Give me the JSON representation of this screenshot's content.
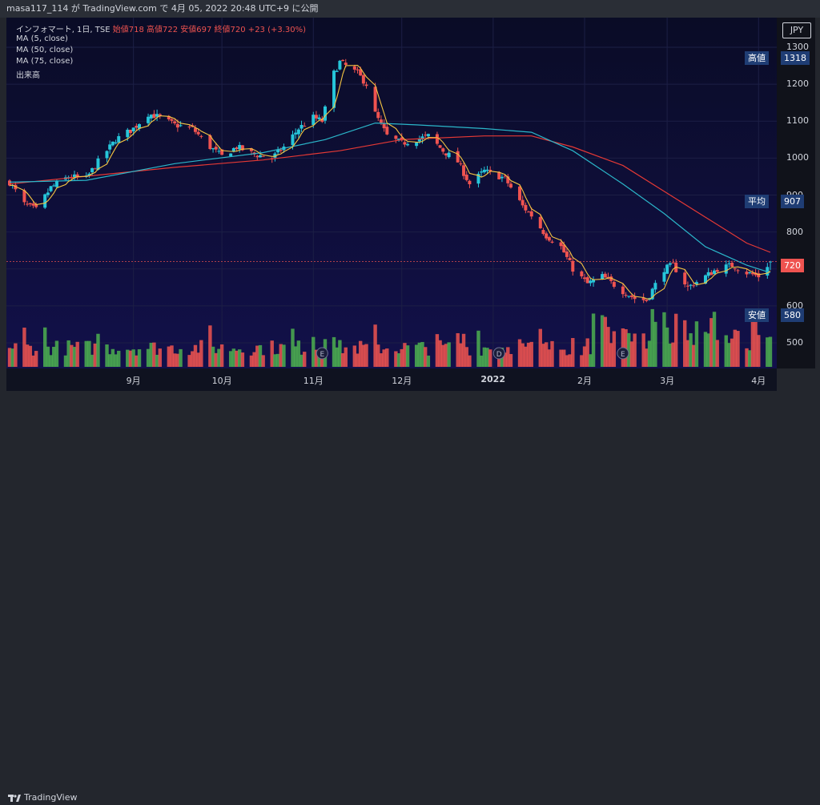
{
  "header": {
    "publish_line": "masa117_114 が TradingView.com で 4月 05, 2022 20:48 UTC+9 に公開"
  },
  "legend": {
    "symbol_line": "インフォマート, 1日, TSE",
    "ohlc": "始値718  高値722  安値697  終値720  +23 (+3.30%)",
    "ma5": "MA (5, close)",
    "ma50": "MA (50, close)",
    "ma75": "MA (75, close)",
    "volume": "出来高"
  },
  "currency": "JPY",
  "price_tags": {
    "high_label": "高値",
    "high_value": "1318",
    "avg_label": "平均",
    "avg_value": "907",
    "low_label": "安値",
    "low_value": "580",
    "last_value": "720"
  },
  "footer": {
    "brand": "TradingView"
  },
  "colors": {
    "up": "#26c6da",
    "down": "#ef5350",
    "ma5": "#f5c542",
    "ma50": "#2bb6c9",
    "ma75": "#e53935",
    "vol_up": "#4caf50",
    "vol_down": "#ef5350"
  },
  "chart_data": {
    "type": "candlestick",
    "y_ticks": [
      500,
      600,
      700,
      800,
      900,
      1000,
      1100,
      1200,
      1300
    ],
    "ylim": [
      450,
      1340
    ],
    "x_ticks": [
      "9月",
      "10月",
      "11月",
      "12月",
      "2022",
      "2月",
      "3月",
      "4月"
    ],
    "x_tick_dates": [
      "2021-09-01",
      "2021-10-01",
      "2021-11-01",
      "2021-12-01",
      "2022-01-01",
      "2022-02-01",
      "2022-03-01",
      "2022-04-01"
    ],
    "close_path": [
      [
        "2021-07-21",
        935
      ],
      [
        "2021-07-26",
        875
      ],
      [
        "2021-07-30",
        860
      ],
      [
        "2021-08-04",
        920
      ],
      [
        "2021-08-10",
        950
      ],
      [
        "2021-08-16",
        945
      ],
      [
        "2021-08-20",
        990
      ],
      [
        "2021-08-26",
        1050
      ],
      [
        "2021-09-01",
        1080
      ],
      [
        "2021-09-06",
        1120
      ],
      [
        "2021-09-10",
        1110
      ],
      [
        "2021-09-15",
        1090
      ],
      [
        "2021-09-21",
        1080
      ],
      [
        "2021-09-27",
        1030
      ],
      [
        "2021-10-01",
        1005
      ],
      [
        "2021-10-06",
        1030
      ],
      [
        "2021-10-12",
        1010
      ],
      [
        "2021-10-18",
        1000
      ],
      [
        "2021-10-22",
        1030
      ],
      [
        "2021-10-27",
        1080
      ],
      [
        "2021-11-01",
        1110
      ],
      [
        "2021-11-04",
        1100
      ],
      [
        "2021-11-08",
        1230
      ],
      [
        "2021-11-10",
        1260
      ],
      [
        "2021-11-12",
        1250
      ],
      [
        "2021-11-16",
        1230
      ],
      [
        "2021-11-19",
        1200
      ],
      [
        "2021-11-22",
        1120
      ],
      [
        "2021-11-26",
        1060
      ],
      [
        "2021-12-01",
        1040
      ],
      [
        "2021-12-06",
        1050
      ],
      [
        "2021-12-10",
        1060
      ],
      [
        "2021-12-15",
        1020
      ],
      [
        "2021-12-20",
        990
      ],
      [
        "2021-12-24",
        930
      ],
      [
        "2021-12-29",
        965
      ],
      [
        "2022-01-05",
        945
      ],
      [
        "2022-01-11",
        870
      ],
      [
        "2022-01-14",
        845
      ],
      [
        "2022-01-19",
        790
      ],
      [
        "2022-01-24",
        760
      ],
      [
        "2022-01-28",
        700
      ],
      [
        "2022-02-02",
        660
      ],
      [
        "2022-02-07",
        680
      ],
      [
        "2022-02-14",
        640
      ],
      [
        "2022-02-18",
        620
      ],
      [
        "2022-02-22",
        615
      ],
      [
        "2022-02-28",
        700
      ],
      [
        "2022-03-03",
        710
      ],
      [
        "2022-03-08",
        650
      ],
      [
        "2022-03-14",
        680
      ],
      [
        "2022-03-18",
        700
      ],
      [
        "2022-03-23",
        710
      ],
      [
        "2022-03-28",
        690
      ],
      [
        "2022-04-01",
        680
      ],
      [
        "2022-04-05",
        720
      ]
    ],
    "ma50_path": [
      [
        "2021-07-21",
        935
      ],
      [
        "2021-08-16",
        940
      ],
      [
        "2021-09-15",
        985
      ],
      [
        "2021-10-15",
        1015
      ],
      [
        "2021-11-05",
        1050
      ],
      [
        "2021-11-22",
        1095
      ],
      [
        "2021-12-06",
        1090
      ],
      [
        "2021-12-29",
        1080
      ],
      [
        "2022-01-14",
        1070
      ],
      [
        "2022-01-28",
        1020
      ],
      [
        "2022-02-14",
        930
      ],
      [
        "2022-02-28",
        850
      ],
      [
        "2022-03-14",
        760
      ],
      [
        "2022-03-28",
        710
      ],
      [
        "2022-04-05",
        690
      ]
    ],
    "ma75_path": [
      [
        "2021-07-21",
        930
      ],
      [
        "2021-09-15",
        975
      ],
      [
        "2021-10-15",
        995
      ],
      [
        "2021-11-10",
        1020
      ],
      [
        "2021-12-01",
        1050
      ],
      [
        "2021-12-29",
        1060
      ],
      [
        "2022-01-14",
        1060
      ],
      [
        "2022-01-28",
        1030
      ],
      [
        "2022-02-14",
        980
      ],
      [
        "2022-02-28",
        910
      ],
      [
        "2022-03-14",
        840
      ],
      [
        "2022-03-28",
        770
      ],
      [
        "2022-04-05",
        745
      ]
    ],
    "high": 1318,
    "average": 907,
    "low": 580,
    "last_close": 720,
    "last_bar": {
      "date": "2022-04-05",
      "open": 718,
      "high": 722,
      "low": 697,
      "close": 720,
      "change": 23,
      "change_pct": 3.3
    },
    "events": [
      {
        "date": "2021-11-04",
        "label": "E"
      },
      {
        "date": "2022-01-03",
        "label": "D"
      },
      {
        "date": "2022-02-14",
        "label": "E"
      }
    ]
  }
}
